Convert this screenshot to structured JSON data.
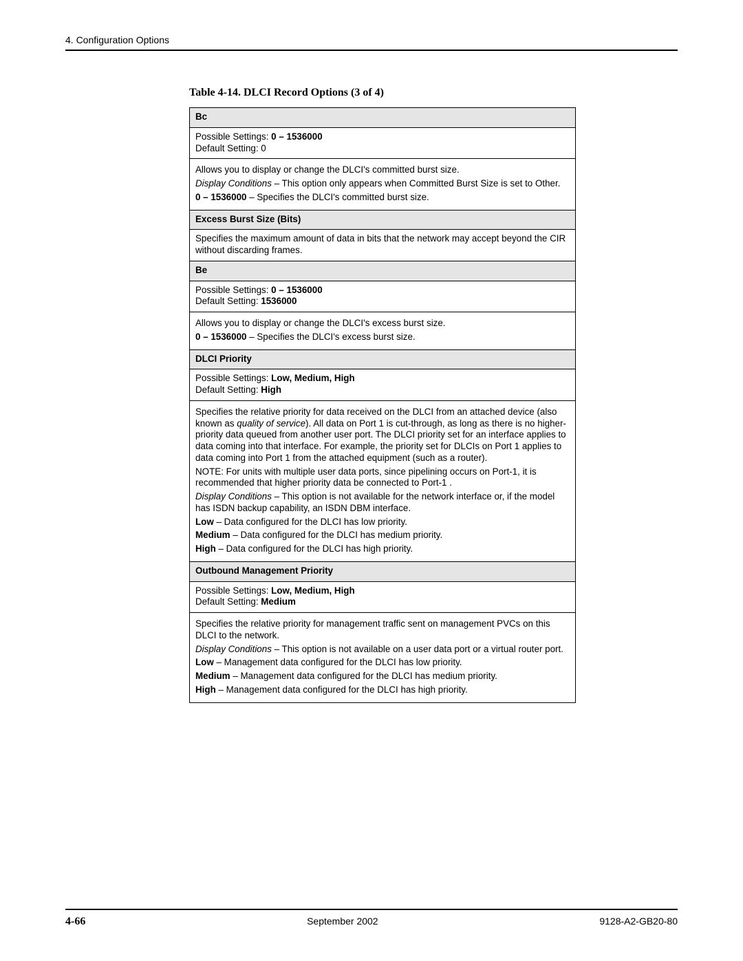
{
  "chapter_head": "4. Configuration Options",
  "table_caption": "Table 4-14.  DLCI Record Options (3 of 4)",
  "bc": {
    "title": "Bc",
    "possible_label": "Possible Settings: ",
    "possible_value": "0 – 1536000",
    "default_label": "Default Setting: ",
    "default_value": "0",
    "intro": "Allows you to display or change the DLCI's committed burst size.",
    "cond_label": "Display Conditions",
    "cond_text": " – This option only appears when Committed Burst Size is set to Other.",
    "range_label": "0 – 1536000",
    "range_text": " – Specifies the DLCI's committed burst size."
  },
  "ebs": {
    "title": "Excess Burst Size (Bits)",
    "text": "Specifies the maximum amount of data in bits that the network may accept beyond the CIR without discarding frames."
  },
  "be": {
    "title": "Be",
    "possible_label": "Possible Settings: ",
    "possible_value": "0 – 1536000",
    "default_label": "Default Setting: ",
    "default_value": "1536000",
    "intro": "Allows you to display or change the DLCI's excess burst size.",
    "range_label": "0 – 1536000",
    "range_text": " – Specifies the DLCI's excess burst size."
  },
  "dlci": {
    "title": "DLCI Priority",
    "possible_label": "Possible Settings: ",
    "possible_value": "Low, Medium, High",
    "default_label": "Default Setting: ",
    "default_value": "High",
    "intro_a": "Specifies the relative priority for data received on the DLCI from an attached device (also known as ",
    "intro_em": "quality of service",
    "intro_b": "). All data on Port 1 is cut-through, as long as there is no higher-priority data queued from another user port. The DLCI priority set for an interface applies to data coming into that interface. For example, the priority set for DLCIs on Port 1 applies to data coming into Port 1 from the attached equipment (such as a router).",
    "note": "NOTE:  For units with multiple user data ports, since pipelining occurs on Port-1, it is recommended that higher priority data be connected to Port-1 .",
    "cond_label": "Display Conditions",
    "cond_text": " – This option is not available for the network interface or, if the model has ISDN backup capability, an ISDN DBM interface.",
    "low_label": "Low",
    "low_text": " – Data configured for the DLCI has low priority.",
    "med_label": "Medium",
    "med_text": " – Data configured for the DLCI has medium priority.",
    "high_label": "High",
    "high_text": " – Data configured for the DLCI has high priority."
  },
  "omp": {
    "title": "Outbound Management Priority",
    "possible_label": "Possible Settings: ",
    "possible_value": "Low, Medium, High",
    "default_label": "Default Setting: ",
    "default_value": "Medium",
    "intro": "Specifies the relative priority for management traffic sent on management PVCs on this DLCI to the network.",
    "cond_label": "Display Conditions",
    "cond_text": " – This option is not available on a user data port or a virtual router port.",
    "low_label": "Low",
    "low_text": " – Management data configured for the DLCI has low priority.",
    "med_label": "Medium",
    "med_text": " – Management data configured for the DLCI has medium priority.",
    "high_label": "High",
    "high_text": " – Management data configured for the DLCI has high priority."
  },
  "footer": {
    "page": "4-66",
    "date": "September 2002",
    "doc": "9128-A2-GB20-80"
  }
}
